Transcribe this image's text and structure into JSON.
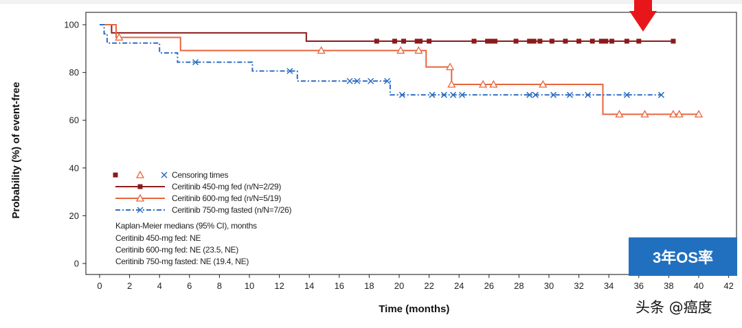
{
  "chart_data": {
    "type": "line",
    "subtype": "kaplan-meier",
    "xlabel": "Time (months)",
    "ylabel": "Probability (%) of event-free",
    "xlim": [
      0,
      42
    ],
    "ylim": [
      0,
      100
    ],
    "xticks": [
      0,
      2,
      4,
      6,
      8,
      10,
      12,
      14,
      16,
      18,
      20,
      22,
      24,
      26,
      28,
      30,
      32,
      34,
      36,
      38,
      40,
      42
    ],
    "yticks": [
      0,
      20,
      40,
      60,
      80,
      100
    ],
    "grid": false,
    "legend_position": "bottom-left",
    "legend_censor_label": "Censoring times",
    "series": [
      {
        "name": "Ceritinib 450-mg fed (n/N=2/29)",
        "color": "#8b1a1a",
        "marker": "square",
        "dash": "solid",
        "steps": [
          [
            0,
            100
          ],
          [
            0.8,
            96.6
          ],
          [
            13.8,
            93.1
          ],
          [
            38.3,
            93.1
          ]
        ],
        "censored": [
          [
            18.5,
            93.1
          ],
          [
            19.7,
            93.1
          ],
          [
            20.3,
            93.1
          ],
          [
            21.2,
            93.1
          ],
          [
            21.4,
            93.1
          ],
          [
            22.0,
            93.1
          ],
          [
            25.0,
            93.1
          ],
          [
            25.9,
            93.1
          ],
          [
            26.2,
            93.1
          ],
          [
            26.4,
            93.1
          ],
          [
            27.8,
            93.1
          ],
          [
            28.7,
            93.1
          ],
          [
            29.0,
            93.1
          ],
          [
            29.4,
            93.1
          ],
          [
            30.2,
            93.1
          ],
          [
            31.1,
            93.1
          ],
          [
            32.0,
            93.1
          ],
          [
            32.9,
            93.1
          ],
          [
            33.5,
            93.1
          ],
          [
            33.8,
            93.1
          ],
          [
            34.2,
            93.1
          ],
          [
            35.2,
            93.1
          ],
          [
            36.0,
            93.1
          ],
          [
            38.3,
            93.1
          ]
        ]
      },
      {
        "name": "Ceritinib 600-mg fed (n/N=5/19)",
        "color": "#e8643c",
        "marker": "triangle",
        "dash": "solid",
        "steps": [
          [
            0,
            100
          ],
          [
            1.1,
            94.7
          ],
          [
            5.4,
            89.2
          ],
          [
            21.8,
            82.3
          ],
          [
            23.5,
            75.0
          ],
          [
            33.6,
            62.5
          ],
          [
            40.0,
            62.5
          ]
        ],
        "censored": [
          [
            1.3,
            94.7
          ],
          [
            14.8,
            89.2
          ],
          [
            20.1,
            89.2
          ],
          [
            21.3,
            89.2
          ],
          [
            23.4,
            82.3
          ],
          [
            23.5,
            75.0
          ],
          [
            25.6,
            75.0
          ],
          [
            26.3,
            75.0
          ],
          [
            29.6,
            75.0
          ],
          [
            34.7,
            62.5
          ],
          [
            36.4,
            62.5
          ],
          [
            38.3,
            62.5
          ],
          [
            38.7,
            62.5
          ],
          [
            40.0,
            62.5
          ]
        ]
      },
      {
        "name": "Ceritinib 750-mg fasted (n/N=7/26)",
        "color": "#2a6cc4",
        "marker": "x",
        "dash": "dashdot",
        "steps": [
          [
            0,
            100
          ],
          [
            0.3,
            96.2
          ],
          [
            0.5,
            92.3
          ],
          [
            4.0,
            88.2
          ],
          [
            5.2,
            84.3
          ],
          [
            10.2,
            80.6
          ],
          [
            13.2,
            76.4
          ],
          [
            19.4,
            70.6
          ],
          [
            37.5,
            70.6
          ]
        ],
        "censored": [
          [
            6.4,
            84.3
          ],
          [
            12.7,
            80.6
          ],
          [
            16.7,
            76.4
          ],
          [
            17.2,
            76.4
          ],
          [
            18.1,
            76.4
          ],
          [
            19.2,
            76.4
          ],
          [
            20.2,
            70.6
          ],
          [
            22.2,
            70.6
          ],
          [
            23.0,
            70.6
          ],
          [
            23.6,
            70.6
          ],
          [
            24.2,
            70.6
          ],
          [
            28.7,
            70.6
          ],
          [
            29.1,
            70.6
          ],
          [
            30.3,
            70.6
          ],
          [
            31.4,
            70.6
          ],
          [
            32.6,
            70.6
          ],
          [
            35.2,
            70.6
          ],
          [
            37.5,
            70.6
          ]
        ]
      }
    ],
    "medians_title": "Kaplan-Meier medians (95% CI), months",
    "medians": [
      "Ceritinib 450-mg fed: NE",
      "Ceritinib 600-mg fed: NE (23.5, NE)",
      "Ceritinib 750-mg fasted: NE (19.4, NE)"
    ]
  },
  "badge_text": "3年OS率",
  "watermark_text": "头条 @癌度",
  "colors": {
    "arrow": "#e8161b",
    "badge": "#2170bf"
  }
}
